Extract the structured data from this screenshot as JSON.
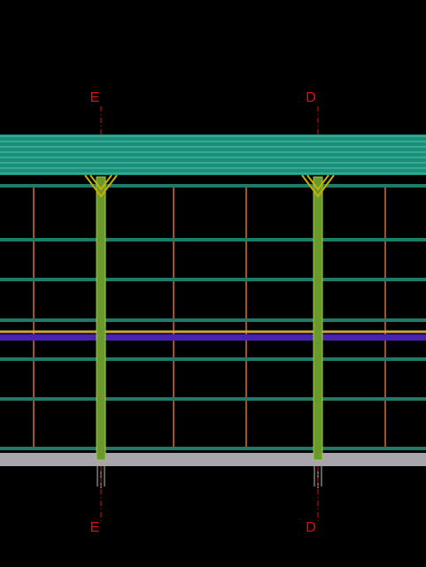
{
  "labels": {
    "top": [
      "E",
      "D"
    ],
    "bottom": [
      "E",
      "D"
    ]
  }
}
